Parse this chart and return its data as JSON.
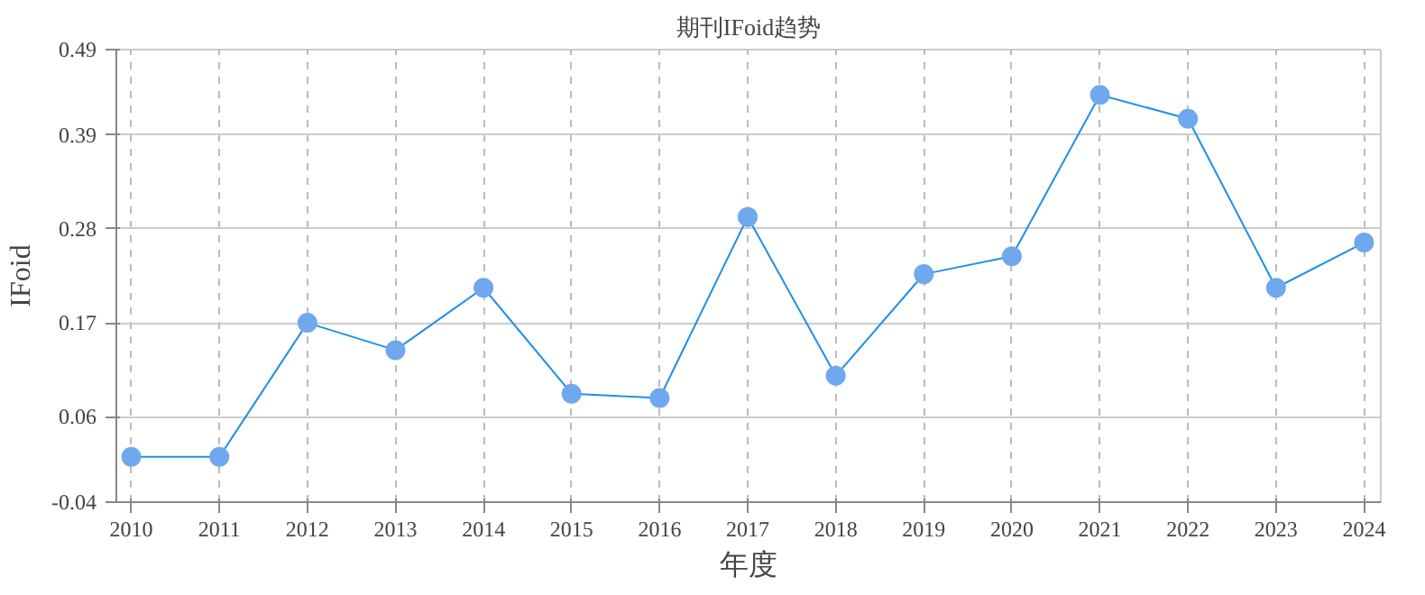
{
  "chart_data": {
    "type": "line",
    "title": "期刊IFoid趋势",
    "xlabel": "年度",
    "ylabel": "IFoid",
    "categories": [
      "2010",
      "2011",
      "2012",
      "2013",
      "2014",
      "2015",
      "2016",
      "2017",
      "2018",
      "2019",
      "2020",
      "2021",
      "2022",
      "2023",
      "2024"
    ],
    "series": [
      {
        "color": "#1e90e8",
        "values": [
          0.013,
          0.013,
          0.17,
          0.138,
          0.211,
          0.087,
          0.082,
          0.294,
          0.108,
          0.227,
          0.248,
          0.437,
          0.409,
          0.211,
          0.264
        ]
      }
    ],
    "ylim": [
      -0.04,
      0.49
    ],
    "yticks": [
      -0.04,
      0.06,
      0.17,
      0.28,
      0.39,
      0.49
    ],
    "grid": true,
    "marker": "circle",
    "line_style": "solid"
  }
}
